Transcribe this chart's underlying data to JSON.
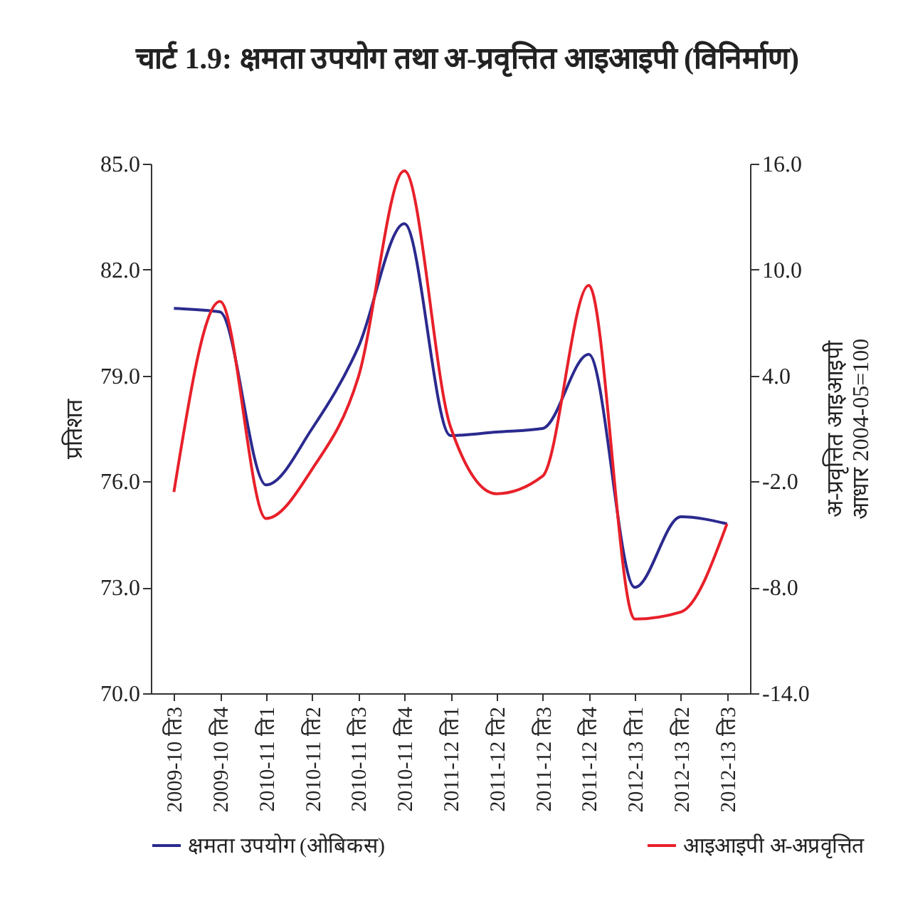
{
  "chart_data": {
    "type": "line",
    "title": "चार्ट 1.9: क्षमता उपयोग तथा अ-प्रवृत्तित आइआइपी (विनिर्माण)",
    "ylabel": "प्रतिशत",
    "y2label": "अ-प्रवृत्तित आइआइपी\nआधार 2004-05=100",
    "categories": [
      "2009-10 ति3",
      "2009-10 ति4",
      "2010-11 ति1",
      "2010-11 ति2",
      "2010-11 ति3",
      "2010-11 ति4",
      "2011-12 ति1",
      "2011-12 ति2",
      "2011-12 ति3",
      "2011-12 ति4",
      "2012-13 ति1",
      "2012-13 ति2",
      "2012-13 ति3"
    ],
    "series": [
      {
        "name": "क्षमता उपयोग (ओबिकस)",
        "color": "#2b2a8f",
        "values": [
          80.9,
          80.8,
          75.9,
          77.5,
          79.8,
          83.3,
          77.3,
          77.4,
          77.5,
          79.6,
          73.0,
          75.0,
          74.8
        ]
      },
      {
        "name": "आइआइपी अ-अप्रवृत्तित",
        "color": "#e8202a",
        "axis": "y2",
        "values": [
          -2.6,
          8.2,
          -4.1,
          -1.3,
          3.9,
          15.6,
          1.1,
          -2.7,
          -1.7,
          9.1,
          -9.8,
          -9.4,
          -4.4
        ]
      }
    ],
    "ylim": [
      70,
      85
    ],
    "yticks": [
      {
        "value": 70,
        "label": "70.0"
      },
      {
        "value": 73,
        "label": "73.0"
      },
      {
        "value": 76,
        "label": "76.0"
      },
      {
        "value": 79,
        "label": "79.0"
      },
      {
        "value": 82,
        "label": "82.0"
      },
      {
        "value": 85,
        "label": "85.0"
      }
    ],
    "y2lim": [
      -14,
      16
    ],
    "y2ticks": [
      {
        "value": -14,
        "label": "-14.0"
      },
      {
        "value": -8,
        "label": "-8.0"
      },
      {
        "value": -2,
        "label": "-2.0"
      },
      {
        "value": 4,
        "label": "4.0"
      },
      {
        "value": 10,
        "label": "10.0"
      },
      {
        "value": 16,
        "label": "16.0"
      }
    ],
    "grid": false,
    "legend": "bottom",
    "marker": "none",
    "line_style": "solid"
  }
}
